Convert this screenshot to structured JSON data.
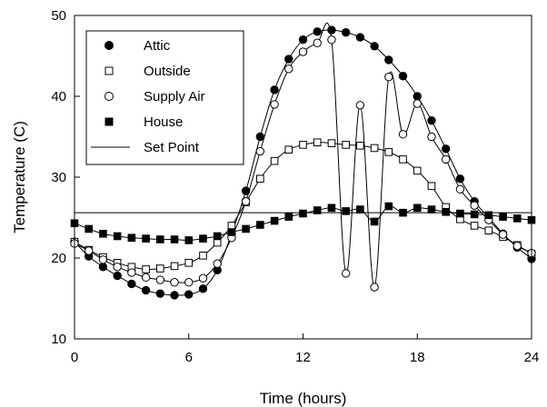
{
  "chart_data": {
    "type": "line",
    "xlabel": "Time (hours)",
    "ylabel": "Temperature (C)",
    "xlim": [
      0,
      24
    ],
    "ylim": [
      10,
      50
    ],
    "xticks": [
      0,
      6,
      12,
      18,
      24
    ],
    "yticks": [
      10,
      20,
      30,
      40,
      50
    ],
    "grid": false,
    "legend_position": "top-left",
    "series": [
      {
        "name": "Attic",
        "marker": "filled-circle",
        "x": [
          0,
          0.75,
          1.5,
          2.25,
          3.0,
          3.75,
          4.5,
          5.25,
          6.0,
          6.75,
          7.5,
          8.25,
          9.0,
          9.75,
          10.5,
          11.25,
          12.0,
          12.75,
          13.5,
          14.25,
          15.0,
          15.75,
          16.5,
          17.25,
          18.0,
          18.75,
          19.5,
          20.25,
          21.0,
          21.75,
          22.5,
          23.25,
          24.0
        ],
        "y": [
          22.0,
          20.2,
          18.9,
          17.8,
          16.8,
          16.0,
          15.6,
          15.4,
          15.5,
          16.2,
          18.5,
          23.0,
          28.3,
          35.0,
          40.8,
          44.6,
          47.0,
          48.0,
          48.2,
          47.9,
          47.3,
          46.2,
          44.5,
          42.5,
          40.0,
          37.0,
          33.5,
          29.8,
          27.0,
          25.0,
          23.0,
          21.3,
          19.9
        ]
      },
      {
        "name": "Outside",
        "marker": "open-square",
        "x": [
          0,
          0.75,
          1.5,
          2.25,
          3.0,
          3.75,
          4.5,
          5.25,
          6.0,
          6.75,
          7.5,
          8.25,
          9.0,
          9.75,
          10.5,
          11.25,
          12.0,
          12.75,
          13.5,
          14.25,
          15.0,
          15.75,
          16.5,
          17.25,
          18.0,
          18.75,
          19.5,
          20.25,
          21.0,
          21.75,
          22.5,
          23.25,
          24.0
        ],
        "y": [
          22.0,
          21.0,
          20.1,
          19.4,
          18.9,
          18.6,
          18.7,
          19.0,
          19.4,
          20.3,
          21.9,
          24.0,
          26.9,
          29.8,
          32.0,
          33.4,
          34.0,
          34.3,
          34.2,
          34.0,
          33.9,
          33.6,
          33.1,
          32.2,
          30.8,
          28.9,
          26.3,
          24.8,
          24.0,
          23.4,
          22.6,
          21.6,
          20.5
        ]
      },
      {
        "name": "Supply Air",
        "marker": "open-circle",
        "x": [
          0,
          0.75,
          1.5,
          2.25,
          3.0,
          3.75,
          4.5,
          5.25,
          6.0,
          6.75,
          7.5,
          8.25,
          9.0,
          9.75,
          10.5,
          11.25,
          12.0,
          12.75,
          13.5,
          14.25,
          15.0,
          15.75,
          16.5,
          17.25,
          18.0,
          18.75,
          19.5,
          20.25,
          21.0,
          21.75,
          22.5,
          23.25,
          24.0
        ],
        "y": [
          21.8,
          20.9,
          19.8,
          18.9,
          18.2,
          17.6,
          17.3,
          17.0,
          17.0,
          17.5,
          19.3,
          22.5,
          27.0,
          33.2,
          39.0,
          43.4,
          45.5,
          46.6,
          47.0,
          18.1,
          38.9,
          16.4,
          42.4,
          35.3,
          39.1,
          35.0,
          32.2,
          28.5,
          26.5,
          24.7,
          22.9,
          21.5,
          20.6
        ]
      },
      {
        "name": "House",
        "marker": "filled-square",
        "x": [
          0,
          0.75,
          1.5,
          2.25,
          3.0,
          3.75,
          4.5,
          5.25,
          6.0,
          6.75,
          7.5,
          8.25,
          9.0,
          9.75,
          10.5,
          11.25,
          12.0,
          12.75,
          13.5,
          14.25,
          15.0,
          15.75,
          16.5,
          17.25,
          18.0,
          18.75,
          19.5,
          20.25,
          21.0,
          21.75,
          22.5,
          23.25,
          24.0
        ],
        "y": [
          24.3,
          23.6,
          23.0,
          22.7,
          22.5,
          22.4,
          22.3,
          22.3,
          22.2,
          22.4,
          22.7,
          23.2,
          23.6,
          24.1,
          24.6,
          25.1,
          25.5,
          25.9,
          26.2,
          25.8,
          26.0,
          24.5,
          26.4,
          25.6,
          26.2,
          26.0,
          25.7,
          25.5,
          25.4,
          25.3,
          25.1,
          24.9,
          24.7
        ]
      },
      {
        "name": "Set Point",
        "marker": "line",
        "x": [
          0,
          24
        ],
        "y": [
          25.6,
          25.6
        ]
      }
    ]
  }
}
